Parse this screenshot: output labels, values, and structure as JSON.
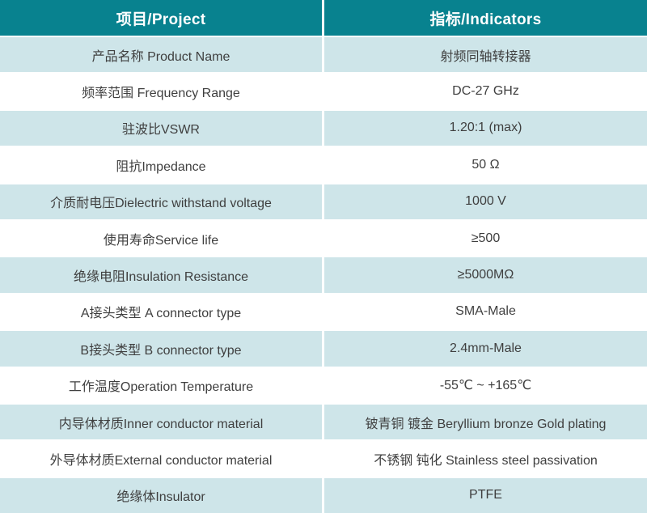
{
  "header": {
    "project_label": "项目/Project",
    "indicators_label": "指标/Indicators"
  },
  "rows": [
    {
      "project": "产品名称 Product Name",
      "indicator": "射频同轴转接器"
    },
    {
      "project": "频率范围 Frequency Range",
      "indicator": "DC-27 GHz"
    },
    {
      "project": "驻波比VSWR",
      "indicator": "1.20:1 (max)"
    },
    {
      "project": "阻抗Impedance",
      "indicator": "50 Ω"
    },
    {
      "project": "介质耐电压Dielectric withstand voltage",
      "indicator": "1000 V"
    },
    {
      "project": "使用寿命Service life",
      "indicator": "≥500"
    },
    {
      "project": "绝缘电阻Insulation Resistance",
      "indicator": "≥5000MΩ"
    },
    {
      "project": "A接头类型 A connector type",
      "indicator": "SMA-Male"
    },
    {
      "project": "B接头类型 B connector type",
      "indicator": "2.4mm-Male"
    },
    {
      "project": "工作温度Operation Temperature",
      "indicator": "-55℃ ~ +165℃"
    },
    {
      "project": "内导体材质Inner conductor material",
      "indicator": "铍青铜 镀金 Beryllium bronze Gold plating"
    },
    {
      "project": "外导体材质External conductor material",
      "indicator": "不锈钢 钝化 Stainless steel passivation"
    },
    {
      "project": "绝缘体Insulator",
      "indicator": "PTFE"
    }
  ],
  "colors": {
    "header-bg": "#08828F",
    "header-text": "#ffffff",
    "row-bg": "#ffffff",
    "row-alt-bg": "#cee5e9",
    "text": "#3f3f3f"
  }
}
